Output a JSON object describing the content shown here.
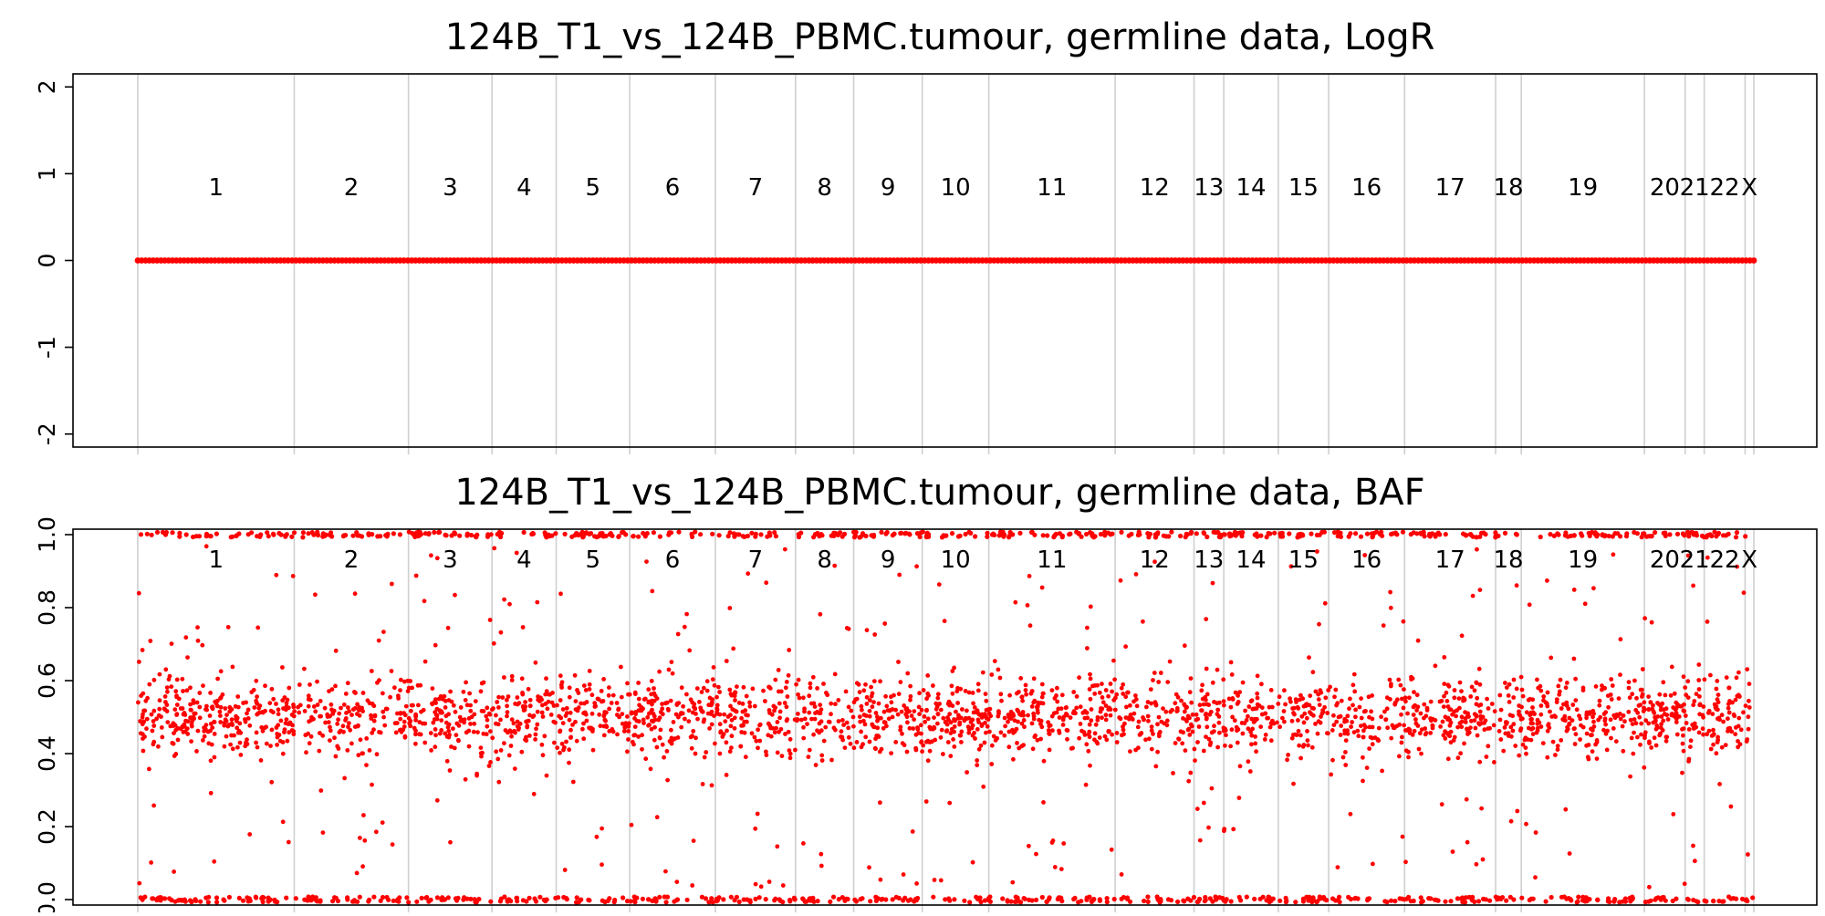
{
  "chart_data": [
    {
      "type": "scatter",
      "title": "124B_T1_vs_124B_PBMC.tumour, germline data, LogR",
      "xlabel": "",
      "ylabel": "",
      "ylim": [
        -2.15,
        2.15
      ],
      "y_ticks": [
        -2,
        -1,
        0,
        1,
        2
      ],
      "y_tick_labels": [
        "-2",
        "-1",
        "0",
        "1",
        "2"
      ],
      "point_color": "#ff0000",
      "grid": false,
      "series": [
        {
          "values_description_free": true,
          "constant_value": 0,
          "from_chromosome": "1",
          "to_chromosome": "X"
        }
      ]
    },
    {
      "type": "scatter",
      "title": "124B_T1_vs_124B_PBMC.tumour, germline data, BAF",
      "xlabel": "",
      "ylabel": "",
      "ylim": [
        -0.015,
        1.015
      ],
      "y_ticks": [
        0.0,
        0.2,
        0.4,
        0.6,
        0.8,
        1.0
      ],
      "y_tick_labels": [
        "0.0",
        "0.2",
        "0.4",
        "0.6",
        "0.8",
        "1.0"
      ],
      "point_color": "#ff0000",
      "grid": false,
      "bands": [
        {
          "center": 1.0,
          "spread": 0.006
        },
        {
          "center": 0.5,
          "spread": 0.055
        },
        {
          "center": 0.0,
          "spread": 0.006
        }
      ]
    }
  ],
  "chromosomes": [
    {
      "label": "1",
      "length": 249
    },
    {
      "label": "2",
      "length": 243
    },
    {
      "label": "3",
      "length": 198
    },
    {
      "label": "4",
      "length": 191
    },
    {
      "label": "5",
      "length": 181
    },
    {
      "label": "6",
      "length": 171
    },
    {
      "label": "7",
      "length": 159
    },
    {
      "label": "8",
      "length": 146
    },
    {
      "label": "9",
      "length": 141
    },
    {
      "label": "10",
      "length": 136
    },
    {
      "label": "11",
      "length": 135
    },
    {
      "label": "12",
      "length": 134
    },
    {
      "label": "13",
      "length": 115
    },
    {
      "label": "14",
      "length": 107
    },
    {
      "label": "15",
      "length": 102
    },
    {
      "label": "16",
      "length": 90
    },
    {
      "label": "17",
      "length": 81
    },
    {
      "label": "18",
      "length": 78
    },
    {
      "label": "19",
      "length": 59
    },
    {
      "label": "20",
      "length": 63
    },
    {
      "label": "21",
      "length": 48
    },
    {
      "label": "22",
      "length": 51
    },
    {
      "label": "X",
      "length": 155
    }
  ],
  "chromosome_boundaries_fraction": [
    0,
    0.0968,
    0.1675,
    0.2192,
    0.2589,
    0.3044,
    0.3574,
    0.407,
    0.443,
    0.4854,
    0.5266,
    0.6048,
    0.6536,
    0.672,
    0.7057,
    0.7369,
    0.7839,
    0.8402,
    0.8561,
    0.9323,
    0.9575,
    0.9693,
    0.9946,
    1.0
  ]
}
